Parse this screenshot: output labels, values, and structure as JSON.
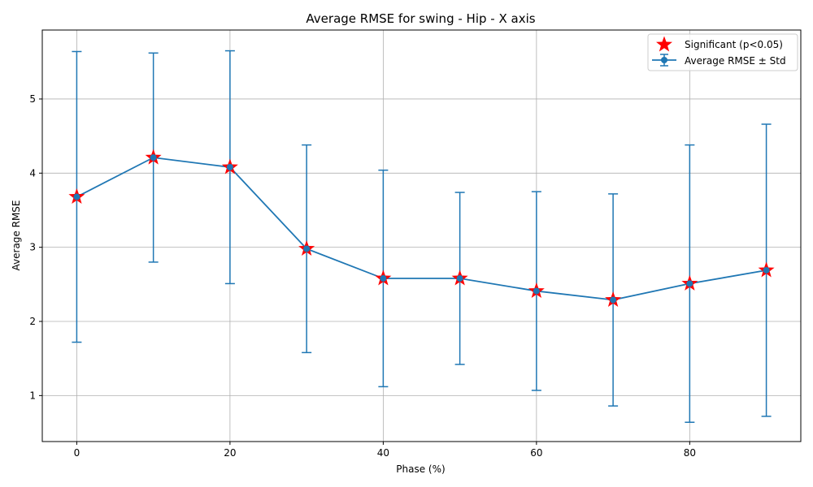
{
  "chart_data": {
    "type": "line",
    "title": "Average RMSE for swing - Hip - X axis",
    "xlabel": "Phase (%)",
    "ylabel": "Average RMSE",
    "x": [
      0,
      10,
      20,
      30,
      40,
      50,
      60,
      70,
      80,
      90
    ],
    "series": [
      {
        "name": "Average RMSE ± Std",
        "values": [
          3.68,
          4.21,
          4.08,
          2.98,
          2.58,
          2.58,
          2.41,
          2.29,
          2.51,
          2.69
        ],
        "std": [
          1.96,
          1.41,
          1.57,
          1.4,
          1.46,
          1.16,
          1.34,
          1.43,
          1.87,
          1.97
        ],
        "color": "#1f77b4"
      }
    ],
    "significant": {
      "name": "Significant (p<0.05)",
      "x": [
        0,
        10,
        20,
        30,
        40,
        50,
        60,
        70,
        80,
        90
      ],
      "color": "#ff0000"
    },
    "xlim": [
      -4.5,
      94.5
    ],
    "ylim": [
      0.38,
      5.93
    ],
    "xticks": [
      0,
      20,
      40,
      60,
      80
    ],
    "yticks": [
      1,
      2,
      3,
      4,
      5
    ],
    "grid": true,
    "legend_position": "top-right"
  }
}
